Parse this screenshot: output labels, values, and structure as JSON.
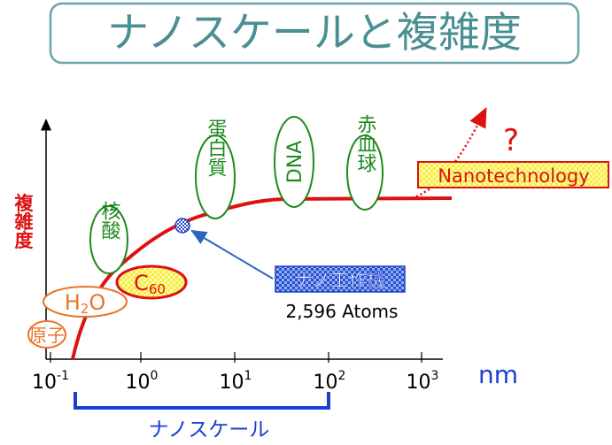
{
  "title": "ナノスケールと複雑度",
  "y_axis_label": "複雑度",
  "unit_label": "nm",
  "x_ticks": [
    {
      "base": "10",
      "exp": "-1"
    },
    {
      "base": "10",
      "exp": "0"
    },
    {
      "base": "10",
      "exp": "1"
    },
    {
      "base": "10",
      "exp": "2"
    },
    {
      "base": "10",
      "exp": "3"
    }
  ],
  "range_label": "ナノスケール",
  "labels": {
    "genshi": "原子",
    "h2o_main": "H",
    "h2o_sub": "2",
    "h2o_end": "O",
    "c60_main": "C",
    "c60_sub": "60",
    "kakusan": "核酸",
    "tanpakushitsu": "蛋白質",
    "dna": "DNA",
    "sekkekkyu": "赤血球",
    "nanotech": "Nanotechnology",
    "question": "?",
    "nano_machine": "ナノ工作機",
    "atoms": "2,596 Atoms"
  },
  "colors": {
    "title": "#4a8f92",
    "title_border": "#6aa6a8",
    "curve": "#dd1111",
    "orange": "#e8742a",
    "green": "#1d8a1d",
    "blue": "#1a3fd0",
    "pointer": "#2a66bb",
    "nano_box_bg": "#3355bb",
    "yellow": "#f4ee3a"
  }
}
